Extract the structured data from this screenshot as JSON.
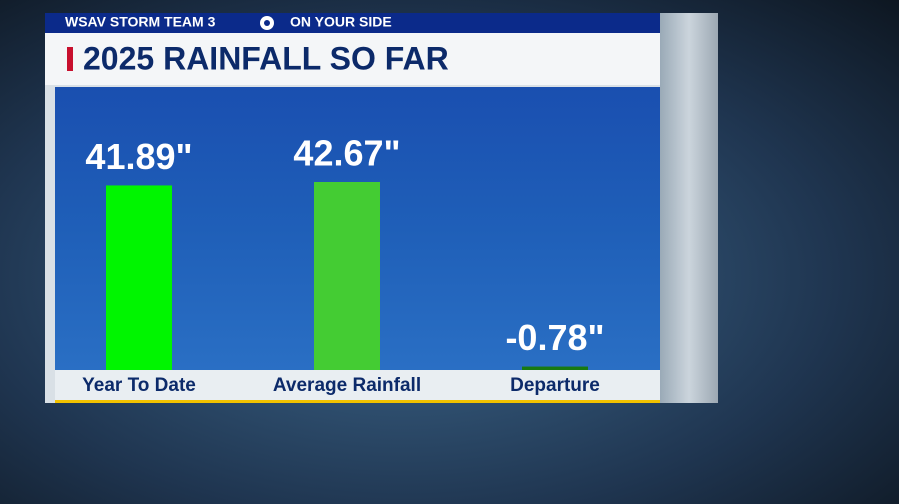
{
  "header": {
    "station": "WSAV STORM TEAM 3",
    "slogan": "ON YOUR SIDE"
  },
  "chart_data": {
    "type": "bar",
    "title": "2025 RAINFALL SO FAR",
    "categories": [
      "Year To Date",
      "Average Rainfall",
      "Departure"
    ],
    "values": [
      41.89,
      42.67,
      -0.78
    ],
    "value_labels": [
      "41.89\"",
      "42.67\"",
      "-0.78\""
    ],
    "colors": [
      "#00f500",
      "#44cc33",
      "#187a12"
    ]
  }
}
